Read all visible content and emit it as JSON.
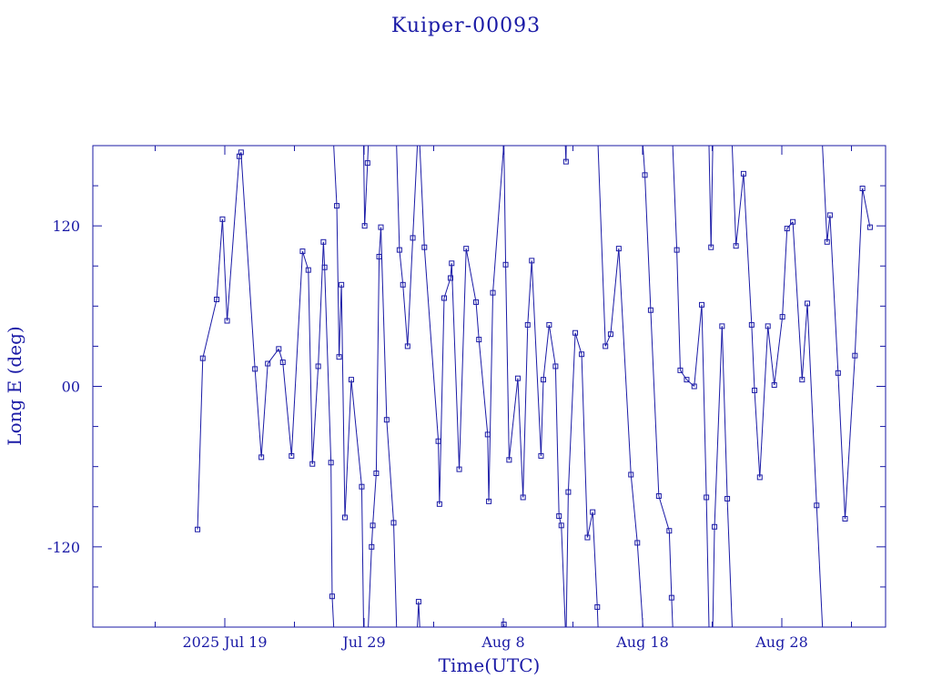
{
  "title": "Kuiper-00093",
  "chart_data": {
    "type": "line",
    "title": "Kuiper-00093",
    "xlabel": "Time(UTC)",
    "ylabel": "Long E (deg)",
    "x_axis": {
      "type": "date",
      "range": [
        "2025-07-10",
        "2025-09-05"
      ],
      "tick_labels": [
        {
          "date": "2025-07-19",
          "label": "2025 Jul 19"
        },
        {
          "date": "2025-07-29",
          "label": "Jul 29"
        },
        {
          "date": "2025-08-08",
          "label": "Aug  8"
        },
        {
          "date": "2025-08-18",
          "label": "Aug 18"
        },
        {
          "date": "2025-08-28",
          "label": "Aug 28"
        }
      ]
    },
    "y_axis": {
      "range": [
        -180,
        180
      ],
      "ticks": [
        -120,
        0,
        120
      ],
      "tick_labels": [
        "-120",
        "00",
        "120"
      ]
    },
    "marker": "square",
    "wrap": "longitude wraps at ±180 deg",
    "colors": {
      "line": "#1a1aa6",
      "axis": "#1a1aa6",
      "text": "#1a1aa6",
      "background": "#ffffff"
    },
    "grid": false,
    "series": [
      {
        "points": [
          [
            "2025-07-17T01:00",
            -107
          ],
          [
            "2025-07-17T10:00",
            21
          ],
          [
            "2025-07-18T10:00",
            65
          ],
          [
            "2025-07-18T20:00",
            125
          ],
          [
            "2025-07-19T04:00",
            49
          ],
          [
            "2025-07-20T01:00",
            172
          ],
          [
            "2025-07-20T04:00",
            175
          ],
          [
            "2025-07-21T04:00",
            13
          ],
          [
            "2025-07-21T15:00",
            -53
          ],
          [
            "2025-07-22T02:00",
            17
          ],
          [
            "2025-07-22T21:00",
            28
          ],
          [
            "2025-07-23T04:00",
            18
          ],
          [
            "2025-07-23T19:00",
            -52
          ],
          [
            "2025-07-24T14:00",
            101
          ],
          [
            "2025-07-25T00:00",
            87
          ],
          [
            "2025-07-25T07:00",
            -58
          ],
          [
            "2025-07-25T17:00",
            15
          ],
          [
            "2025-07-26T02:00",
            108
          ],
          [
            "2025-07-26T04:00",
            89
          ],
          [
            "2025-07-26T15:00",
            -57
          ],
          [
            "2025-07-26T17:00",
            -157
          ],
          [
            "2025-07-27T01:00",
            135
          ],
          [
            "2025-07-27T05:00",
            22
          ],
          [
            "2025-07-27T09:00",
            76
          ],
          [
            "2025-07-27T15:00",
            -98
          ],
          [
            "2025-07-28T02:00",
            5
          ],
          [
            "2025-07-28T20:00",
            -75
          ],
          [
            "2025-07-29T01:00",
            120
          ],
          [
            "2025-07-29T06:00",
            167
          ],
          [
            "2025-07-29T13:00",
            -120
          ],
          [
            "2025-07-29T15:00",
            -104
          ],
          [
            "2025-07-29T21:00",
            -65
          ],
          [
            "2025-07-30T02:00",
            97
          ],
          [
            "2025-07-30T05:00",
            119
          ],
          [
            "2025-07-30T15:00",
            -25
          ],
          [
            "2025-07-31T03:00",
            -102
          ],
          [
            "2025-07-31T13:00",
            102
          ],
          [
            "2025-07-31T19:00",
            76
          ],
          [
            "2025-08-01T03:00",
            30
          ],
          [
            "2025-08-01T12:00",
            111
          ],
          [
            "2025-08-01T22:00",
            -161
          ],
          [
            "2025-08-02T08:00",
            104
          ],
          [
            "2025-08-03T08:00",
            -41
          ],
          [
            "2025-08-03T10:00",
            -88
          ],
          [
            "2025-08-03T18:00",
            66
          ],
          [
            "2025-08-04T05:00",
            81
          ],
          [
            "2025-08-04T07:00",
            92
          ],
          [
            "2025-08-04T20:00",
            -62
          ],
          [
            "2025-08-05T08:00",
            103
          ],
          [
            "2025-08-06T01:00",
            63
          ],
          [
            "2025-08-06T06:00",
            35
          ],
          [
            "2025-08-06T21:00",
            -36
          ],
          [
            "2025-08-06T23:00",
            -86
          ],
          [
            "2025-08-07T06:00",
            70
          ],
          [
            "2025-08-08T01:00",
            -178
          ],
          [
            "2025-08-08T04:00",
            91
          ],
          [
            "2025-08-08T10:00",
            -55
          ],
          [
            "2025-08-09T01:00",
            6
          ],
          [
            "2025-08-09T10:00",
            -83
          ],
          [
            "2025-08-09T18:00",
            46
          ],
          [
            "2025-08-10T01:00",
            94
          ],
          [
            "2025-08-10T17:00",
            -52
          ],
          [
            "2025-08-10T21:00",
            5
          ],
          [
            "2025-08-11T07:00",
            46
          ],
          [
            "2025-08-11T18:00",
            15
          ],
          [
            "2025-08-12T00:00",
            -97
          ],
          [
            "2025-08-12T04:00",
            -104
          ],
          [
            "2025-08-12T12:00",
            168
          ],
          [
            "2025-08-12T16:00",
            -79
          ],
          [
            "2025-08-13T04:00",
            40
          ],
          [
            "2025-08-13T15:00",
            24
          ],
          [
            "2025-08-14T01:00",
            -113
          ],
          [
            "2025-08-14T10:00",
            -94
          ],
          [
            "2025-08-14T18:00",
            -165
          ],
          [
            "2025-08-15T08:00",
            30
          ],
          [
            "2025-08-15T17:00",
            39
          ],
          [
            "2025-08-16T07:00",
            103
          ],
          [
            "2025-08-17T04:00",
            -66
          ],
          [
            "2025-08-17T15:00",
            -117
          ],
          [
            "2025-08-18T04:00",
            158
          ],
          [
            "2025-08-18T14:00",
            57
          ],
          [
            "2025-08-19T04:00",
            -82
          ],
          [
            "2025-08-19T22:00",
            -108
          ],
          [
            "2025-08-20T02:00",
            -158
          ],
          [
            "2025-08-20T11:00",
            102
          ],
          [
            "2025-08-20T17:00",
            12
          ],
          [
            "2025-08-21T04:00",
            5
          ],
          [
            "2025-08-21T17:00",
            0
          ],
          [
            "2025-08-22T06:00",
            61
          ],
          [
            "2025-08-22T14:00",
            -83
          ],
          [
            "2025-08-22T22:00",
            104
          ],
          [
            "2025-08-23T04:00",
            -105
          ],
          [
            "2025-08-23T17:00",
            45
          ],
          [
            "2025-08-24T02:00",
            -84
          ],
          [
            "2025-08-24T17:00",
            105
          ],
          [
            "2025-08-25T06:00",
            159
          ],
          [
            "2025-08-25T20:00",
            46
          ],
          [
            "2025-08-26T01:00",
            -3
          ],
          [
            "2025-08-26T10:00",
            -68
          ],
          [
            "2025-08-27T00:00",
            45
          ],
          [
            "2025-08-27T11:00",
            1
          ],
          [
            "2025-08-28T01:00",
            52
          ],
          [
            "2025-08-28T09:00",
            118
          ],
          [
            "2025-08-28T19:00",
            123
          ],
          [
            "2025-08-29T11:00",
            5
          ],
          [
            "2025-08-29T20:00",
            62
          ],
          [
            "2025-08-30T12:00",
            -89
          ],
          [
            "2025-08-31T06:00",
            108
          ],
          [
            "2025-08-31T11:00",
            128
          ],
          [
            "2025-09-01T01:00",
            10
          ],
          [
            "2025-09-01T13:00",
            -99
          ],
          [
            "2025-09-02T06:00",
            23
          ],
          [
            "2025-09-02T19:00",
            148
          ],
          [
            "2025-09-03T08:00",
            119
          ]
        ]
      }
    ]
  }
}
